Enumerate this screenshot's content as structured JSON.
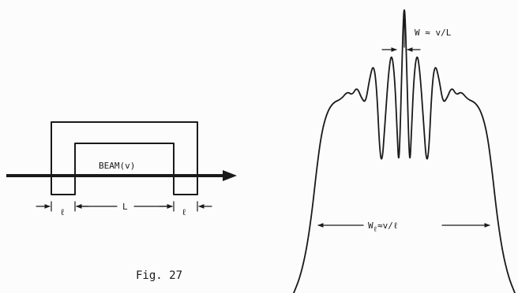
{
  "diagram": {
    "beam_label": "BEAM(v)",
    "gap_label": "L",
    "end_label_left": "ℓ",
    "end_label_right": "ℓ",
    "narrow_width_label": "W ≈ v/L",
    "broad_width_label_main": "W",
    "broad_width_label_sub": "ℓ",
    "broad_width_label_rest": "≈v/ℓ",
    "caption": "Fig. 27"
  }
}
